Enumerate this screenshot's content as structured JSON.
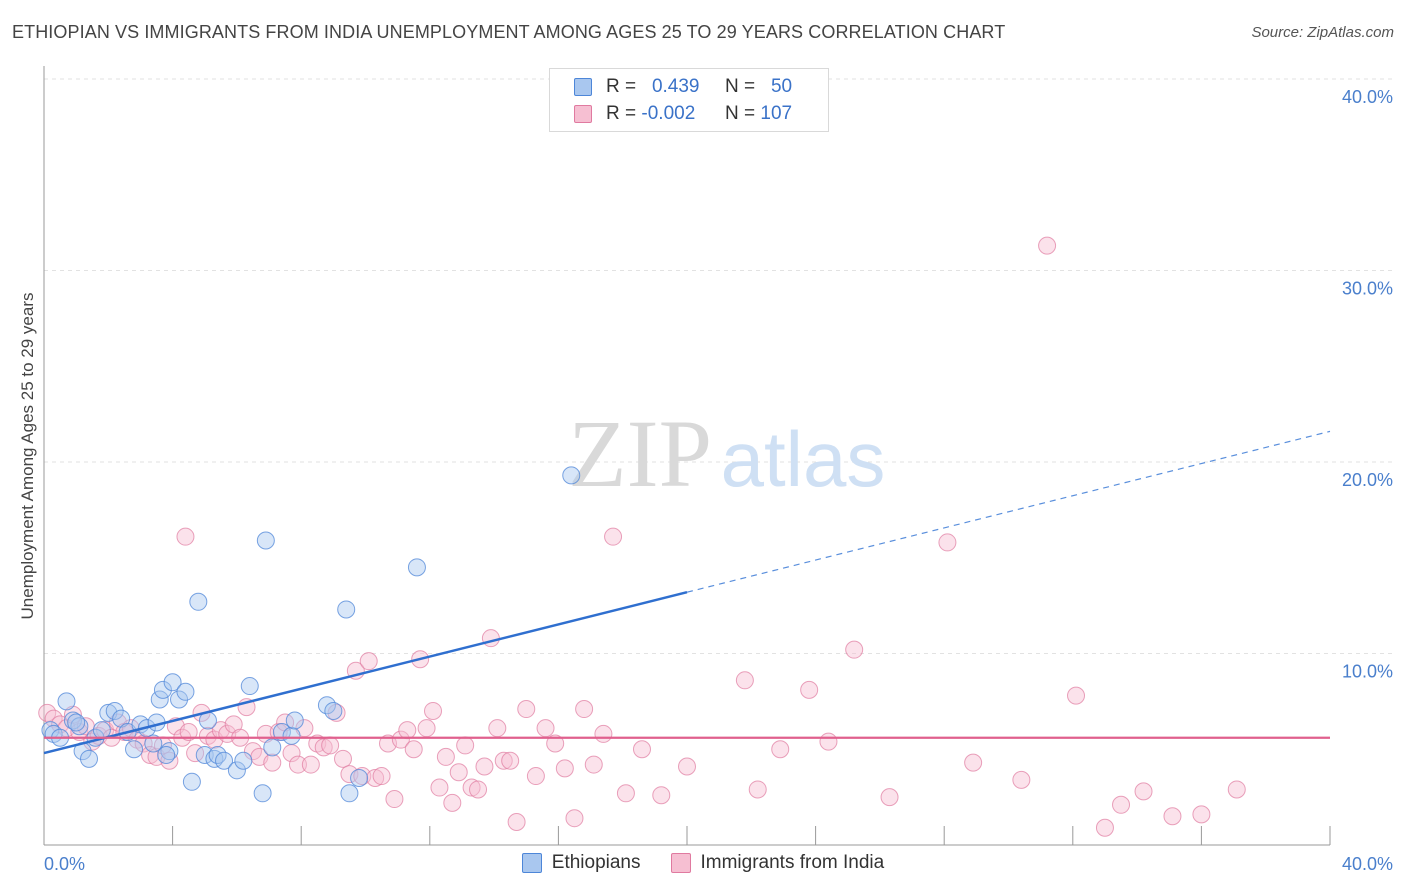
{
  "title": "ETHIOPIAN VS IMMIGRANTS FROM INDIA UNEMPLOYMENT AMONG AGES 25 TO 29 YEARS CORRELATION CHART",
  "source": "Source: ZipAtlas.com",
  "watermark": {
    "zip": "ZIP",
    "atlas": "atlas"
  },
  "colors": {
    "ethiopians": "#4d86d8",
    "ethiopians_fill": "#a9c7ef",
    "india": "#e07aa0",
    "india_fill": "#f6bfd2",
    "axis_text": "#4a7fcc"
  },
  "legend": {
    "rows": [
      {
        "r_label": "R =",
        "r_value": "0.439",
        "n_label": "N =",
        "n_value": "50"
      },
      {
        "r_label": "R =",
        "r_value": "-0.002",
        "n_label": "N =",
        "n_value": "107"
      }
    ]
  },
  "bottom_legend": [
    "Ethiopians",
    "Immigrants from India"
  ],
  "chart_data": {
    "type": "scatter",
    "title": "ETHIOPIAN VS IMMIGRANTS FROM INDIA UNEMPLOYMENT AMONG AGES 25 TO 29 YEARS CORRELATION CHART",
    "xlabel": "",
    "ylabel": "Unemployment Among Ages 25 to 29 years",
    "xlim": [
      0,
      40
    ],
    "ylim": [
      0,
      40
    ],
    "x_tick_labels": [
      "0.0%",
      "40.0%"
    ],
    "y_ticks": [
      10,
      20,
      30,
      40
    ],
    "y_tick_labels": [
      "10.0%",
      "20.0%",
      "30.0%",
      "40.0%"
    ],
    "grid": true,
    "series": [
      {
        "name": "Ethiopians",
        "r": 0.439,
        "n": 50,
        "trend": {
          "x0": 0,
          "y0": 4.8,
          "x1": 20,
          "y1": 13.2,
          "dashed_to_x": 40,
          "dashed_to_y": 21.6
        },
        "points": [
          [
            0.2,
            6.0
          ],
          [
            0.3,
            5.8
          ],
          [
            0.5,
            5.6
          ],
          [
            0.7,
            7.5
          ],
          [
            0.9,
            6.5
          ],
          [
            1.1,
            6.2
          ],
          [
            1.2,
            4.9
          ],
          [
            1.4,
            4.5
          ],
          [
            1.6,
            5.6
          ],
          [
            1.8,
            6.0
          ],
          [
            2.0,
            6.9
          ],
          [
            2.2,
            7.0
          ],
          [
            2.4,
            6.6
          ],
          [
            2.6,
            5.9
          ],
          [
            2.8,
            5.0
          ],
          [
            3.0,
            6.3
          ],
          [
            3.2,
            6.1
          ],
          [
            3.4,
            5.3
          ],
          [
            3.5,
            6.4
          ],
          [
            3.6,
            7.6
          ],
          [
            3.7,
            8.1
          ],
          [
            3.9,
            4.9
          ],
          [
            4.0,
            8.5
          ],
          [
            4.2,
            7.6
          ],
          [
            4.4,
            8.0
          ],
          [
            4.6,
            3.3
          ],
          [
            4.8,
            12.7
          ],
          [
            5.0,
            4.7
          ],
          [
            5.1,
            6.5
          ],
          [
            5.3,
            4.5
          ],
          [
            5.4,
            4.7
          ],
          [
            5.6,
            4.4
          ],
          [
            6.0,
            3.9
          ],
          [
            6.2,
            4.4
          ],
          [
            6.4,
            8.3
          ],
          [
            6.8,
            2.7
          ],
          [
            6.9,
            15.9
          ],
          [
            7.1,
            5.1
          ],
          [
            7.4,
            5.9
          ],
          [
            7.7,
            5.7
          ],
          [
            7.8,
            6.5
          ],
          [
            8.8,
            7.3
          ],
          [
            9.0,
            7.0
          ],
          [
            9.4,
            12.3
          ],
          [
            9.5,
            2.7
          ],
          [
            9.8,
            3.5
          ],
          [
            11.6,
            14.5
          ],
          [
            16.4,
            19.3
          ],
          [
            1.0,
            6.4
          ],
          [
            3.8,
            4.7
          ]
        ]
      },
      {
        "name": "Immigrants from India",
        "r": -0.002,
        "n": 107,
        "trend": {
          "x0": 0,
          "y0": 5.6,
          "x1": 40,
          "y1": 5.6
        },
        "points": [
          [
            0.1,
            6.9
          ],
          [
            0.3,
            6.6
          ],
          [
            0.5,
            6.3
          ],
          [
            0.7,
            6.1
          ],
          [
            0.9,
            6.8
          ],
          [
            1.1,
            5.9
          ],
          [
            1.3,
            6.2
          ],
          [
            1.5,
            5.4
          ],
          [
            1.7,
            5.7
          ],
          [
            1.9,
            6.0
          ],
          [
            2.1,
            5.6
          ],
          [
            2.3,
            6.4
          ],
          [
            2.5,
            5.9
          ],
          [
            2.7,
            6.1
          ],
          [
            2.9,
            5.5
          ],
          [
            3.1,
            5.3
          ],
          [
            3.3,
            4.7
          ],
          [
            3.5,
            4.6
          ],
          [
            3.7,
            5.2
          ],
          [
            3.9,
            4.4
          ],
          [
            4.1,
            6.2
          ],
          [
            4.3,
            5.6
          ],
          [
            4.5,
            5.9
          ],
          [
            4.7,
            4.8
          ],
          [
            4.9,
            6.9
          ],
          [
            5.1,
            5.7
          ],
          [
            5.3,
            5.5
          ],
          [
            5.5,
            6.0
          ],
          [
            5.7,
            5.8
          ],
          [
            5.9,
            6.3
          ],
          [
            6.1,
            5.6
          ],
          [
            6.3,
            7.2
          ],
          [
            6.5,
            4.9
          ],
          [
            6.7,
            4.6
          ],
          [
            6.9,
            5.8
          ],
          [
            7.1,
            4.3
          ],
          [
            7.3,
            5.9
          ],
          [
            7.5,
            6.4
          ],
          [
            7.7,
            4.8
          ],
          [
            7.9,
            4.2
          ],
          [
            8.1,
            6.1
          ],
          [
            8.3,
            4.2
          ],
          [
            8.5,
            5.3
          ],
          [
            8.7,
            5.1
          ],
          [
            8.9,
            5.2
          ],
          [
            9.1,
            6.9
          ],
          [
            9.3,
            4.5
          ],
          [
            9.5,
            3.7
          ],
          [
            9.7,
            9.1
          ],
          [
            9.9,
            3.6
          ],
          [
            10.1,
            9.6
          ],
          [
            10.3,
            3.5
          ],
          [
            10.5,
            3.6
          ],
          [
            10.7,
            5.3
          ],
          [
            10.9,
            2.4
          ],
          [
            11.1,
            5.5
          ],
          [
            11.3,
            6.0
          ],
          [
            11.5,
            5.0
          ],
          [
            11.7,
            9.7
          ],
          [
            11.9,
            6.1
          ],
          [
            12.1,
            7.0
          ],
          [
            12.3,
            3.0
          ],
          [
            12.5,
            4.6
          ],
          [
            12.7,
            2.2
          ],
          [
            12.9,
            3.8
          ],
          [
            13.1,
            5.2
          ],
          [
            13.3,
            3.0
          ],
          [
            13.5,
            2.9
          ],
          [
            13.7,
            4.1
          ],
          [
            13.9,
            10.8
          ],
          [
            14.1,
            6.1
          ],
          [
            14.3,
            4.4
          ],
          [
            14.5,
            4.4
          ],
          [
            14.7,
            1.2
          ],
          [
            15.0,
            7.1
          ],
          [
            15.3,
            3.6
          ],
          [
            15.6,
            6.1
          ],
          [
            15.9,
            5.3
          ],
          [
            16.2,
            4.0
          ],
          [
            16.5,
            1.4
          ],
          [
            16.8,
            7.1
          ],
          [
            17.1,
            4.2
          ],
          [
            17.4,
            5.8
          ],
          [
            17.7,
            16.1
          ],
          [
            18.1,
            2.7
          ],
          [
            18.6,
            5.0
          ],
          [
            19.2,
            2.6
          ],
          [
            20.0,
            4.1
          ],
          [
            21.8,
            8.6
          ],
          [
            22.2,
            2.9
          ],
          [
            22.9,
            5.0
          ],
          [
            23.8,
            8.1
          ],
          [
            24.4,
            5.4
          ],
          [
            25.2,
            10.2
          ],
          [
            26.3,
            2.5
          ],
          [
            28.1,
            15.8
          ],
          [
            28.9,
            4.3
          ],
          [
            30.4,
            3.4
          ],
          [
            31.2,
            31.3
          ],
          [
            32.1,
            7.8
          ],
          [
            33.0,
            0.9
          ],
          [
            33.5,
            2.1
          ],
          [
            34.2,
            2.8
          ],
          [
            35.1,
            1.5
          ],
          [
            36.0,
            1.6
          ],
          [
            37.1,
            2.9
          ],
          [
            4.4,
            16.1
          ]
        ]
      }
    ]
  }
}
